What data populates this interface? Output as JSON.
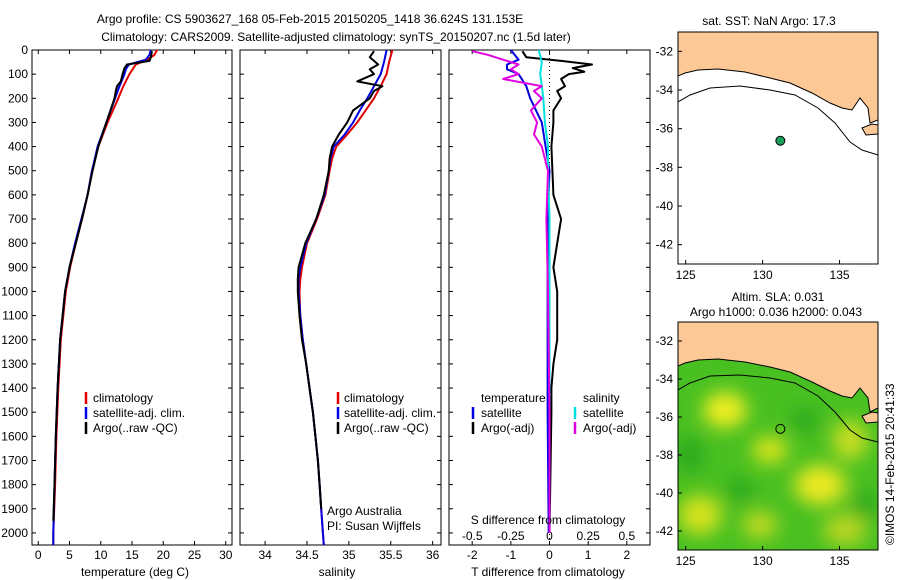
{
  "title": {
    "line1": "Argo profile: CS 5903627_168 05-Feb-2015 20150205_1418 36.624S 131.153E",
    "line2": "Climatology: CARS2009. Satellite-adjusted climatology: synTS_20150207.nc (1.5d later)"
  },
  "colors": {
    "clim": "#e00000",
    "sat": "#0000e0",
    "argo": "#000000",
    "sal_sat": "#00e0e0",
    "sal_argo": "#e000e0",
    "land": "#fcc896",
    "argo_marker": "#1aa05a"
  },
  "chart_data": [
    {
      "id": "temperature",
      "type": "line",
      "xlabel": "temperature (deg C)",
      "ylabel": "",
      "xlim": [
        -1,
        31
      ],
      "ylim": [
        2050,
        0
      ],
      "xticks": [
        0,
        5,
        10,
        15,
        20,
        25,
        30
      ],
      "yticks": [
        0,
        100,
        200,
        300,
        400,
        500,
        600,
        700,
        800,
        900,
        1000,
        1100,
        1200,
        1300,
        1400,
        1500,
        1600,
        1700,
        1800,
        1900,
        2000
      ],
      "legend": [
        "climatology",
        "satellite-adj. clim.",
        "Argo(..raw -QC)"
      ],
      "series": [
        {
          "name": "climatology",
          "color": "clim",
          "depth": [
            0,
            20,
            40,
            60,
            80,
            100,
            150,
            200,
            300,
            400,
            500,
            600,
            700,
            800,
            900,
            1000,
            1200,
            1400,
            1600,
            1800,
            2000,
            2050
          ],
          "values": [
            19.0,
            18.6,
            17.5,
            15.6,
            15.1,
            14.6,
            13.6,
            12.8,
            11.1,
            9.6,
            8.6,
            7.9,
            7.0,
            6.0,
            5.1,
            4.4,
            3.6,
            3.2,
            2.9,
            2.7,
            2.4,
            2.4
          ]
        },
        {
          "name": "satellite-adj. clim.",
          "color": "sat",
          "depth": [
            0,
            20,
            40,
            60,
            80,
            100,
            150,
            200,
            300,
            400,
            500,
            600,
            700,
            800,
            900,
            1000,
            1200,
            1400,
            1600,
            1800,
            2000,
            2050
          ],
          "values": [
            18.0,
            17.8,
            17.2,
            14.5,
            14.0,
            13.8,
            13.0,
            12.3,
            10.9,
            9.5,
            8.6,
            7.9,
            6.9,
            5.9,
            5.0,
            4.3,
            3.5,
            3.1,
            2.8,
            2.6,
            2.4,
            2.4
          ]
        },
        {
          "name": "Argo(..raw -QC)",
          "color": "argo",
          "depth": [
            5,
            30,
            45,
            60,
            75,
            100,
            130,
            150,
            170,
            200,
            300,
            400,
            500,
            600,
            700,
            800,
            900,
            1000,
            1200,
            1400,
            1600,
            1800,
            1950
          ],
          "values": [
            18.2,
            18.0,
            17.8,
            14.2,
            13.8,
            13.5,
            13.2,
            12.6,
            12.4,
            12.2,
            10.9,
            9.6,
            8.7,
            7.9,
            7.0,
            6.0,
            5.0,
            4.3,
            3.5,
            3.1,
            2.8,
            2.6,
            2.4
          ]
        }
      ]
    },
    {
      "id": "salinity",
      "type": "line",
      "xlabel": "salinity",
      "xlim": [
        33.7,
        36.1
      ],
      "ylim": [
        2050,
        0
      ],
      "xticks": [
        34,
        34.5,
        35,
        35.5,
        36
      ],
      "xticklabels": [
        "34",
        "34.5",
        "35",
        "35.5",
        "36"
      ],
      "legend": [
        "climatology",
        "satellite-adj. clim.",
        "Argo(..raw -QC)"
      ],
      "annotation": [
        "Argo Australia",
        "PI: Susan Wijffels"
      ],
      "series": [
        {
          "name": "climatology",
          "color": "clim",
          "depth": [
            0,
            50,
            100,
            150,
            200,
            250,
            300,
            350,
            400,
            450,
            500,
            600,
            700,
            800,
            900,
            950,
            1000,
            1100,
            1200,
            1300,
            1400,
            1500,
            1600,
            1700,
            1800,
            1900,
            2000,
            2050
          ],
          "values": [
            35.52,
            35.48,
            35.45,
            35.38,
            35.3,
            35.2,
            35.1,
            34.98,
            34.85,
            34.8,
            34.77,
            34.72,
            34.62,
            34.5,
            34.44,
            34.42,
            34.41,
            34.42,
            34.45,
            34.49,
            34.53,
            34.57,
            34.6,
            34.63,
            34.65,
            34.67,
            34.69,
            34.7
          ]
        },
        {
          "name": "satellite-adj. clim.",
          "color": "sat",
          "depth": [
            0,
            50,
            100,
            150,
            200,
            250,
            300,
            350,
            400,
            450,
            500,
            600,
            700,
            800,
            900,
            950,
            1000,
            1100,
            1200,
            1300,
            1400,
            1500,
            1600,
            1700,
            1800,
            1900,
            2000,
            2050
          ],
          "values": [
            35.45,
            35.42,
            35.38,
            35.3,
            35.22,
            35.13,
            35.05,
            34.95,
            34.82,
            34.78,
            34.76,
            34.71,
            34.61,
            34.49,
            34.42,
            34.4,
            34.4,
            34.42,
            34.45,
            34.49,
            34.53,
            34.57,
            34.6,
            34.63,
            34.65,
            34.67,
            34.69,
            34.7
          ]
        },
        {
          "name": "Argo(..raw -QC)",
          "color": "argo",
          "depth": [
            5,
            30,
            60,
            80,
            100,
            130,
            150,
            170,
            200,
            250,
            300,
            350,
            400,
            450,
            500,
            600,
            700,
            800,
            900,
            950,
            1000,
            1100,
            1200,
            1300,
            1400,
            1500,
            1600,
            1700,
            1800,
            1900
          ],
          "values": [
            35.3,
            35.25,
            35.35,
            35.25,
            35.3,
            35.1,
            35.4,
            35.3,
            35.25,
            35.05,
            34.98,
            34.88,
            34.8,
            34.77,
            34.76,
            34.7,
            34.61,
            34.48,
            34.4,
            34.39,
            34.39,
            34.41,
            34.44,
            34.49,
            34.53,
            34.57,
            34.6,
            34.63,
            34.65,
            34.67
          ]
        }
      ]
    },
    {
      "id": "differences",
      "type": "line",
      "xlabel": "T difference from climatology",
      "top_axis_label": "S difference from climatology",
      "xlim": [
        -2.6,
        2.6
      ],
      "ylim": [
        2050,
        0
      ],
      "xticks": [
        -2,
        -1,
        0,
        1,
        2
      ],
      "top_ticks": [
        -0.5,
        -0.25,
        0,
        0.25,
        0.5
      ],
      "top_ticklabels": [
        "-0.5",
        "-0.25",
        "0",
        "0.25",
        "0.5"
      ],
      "legend_left_title": "temperature",
      "legend_right_title": "salinity",
      "legend_left": [
        "satellite",
        "Argo(-adj)"
      ],
      "legend_right": [
        "satellite",
        "Argo(-adj)"
      ],
      "series": [
        {
          "name": "T satellite",
          "color": "sat",
          "depth": [
            0,
            40,
            60,
            80,
            100,
            150,
            200,
            300,
            400,
            500,
            700,
            1000,
            1500,
            2000
          ],
          "values": [
            -1.0,
            -0.8,
            -1.1,
            -1.1,
            -0.8,
            -0.6,
            -0.5,
            -0.2,
            -0.1,
            0,
            -0.05,
            -0.05,
            -0.05,
            -0.02
          ]
        },
        {
          "name": "T Argo(-adj)",
          "color": "argo",
          "depth": [
            5,
            30,
            45,
            60,
            75,
            90,
            100,
            120,
            150,
            170,
            200,
            250,
            300,
            400,
            600,
            700,
            800,
            900,
            1000,
            1200,
            1300,
            1400,
            1500,
            2000
          ],
          "values": [
            -0.7,
            -0.6,
            0.3,
            1.1,
            0.6,
            0.9,
            0.5,
            0.3,
            0.4,
            0.2,
            0.3,
            0.1,
            0.1,
            0.05,
            0.1,
            0.3,
            0.2,
            0.1,
            0.2,
            0.2,
            0.1,
            0.05,
            0.05,
            0.0
          ]
        },
        {
          "name": "S satellite",
          "color": "sal_sat",
          "depth": [
            0,
            50,
            100,
            150,
            200,
            300,
            400,
            500,
            700,
            1000,
            1500,
            2000
          ],
          "values": [
            -0.07,
            -0.05,
            -0.06,
            -0.05,
            -0.04,
            -0.03,
            -0.01,
            -0.01,
            0,
            0,
            0,
            0
          ]
        },
        {
          "name": "S Argo(-adj)",
          "color": "sal_argo",
          "depth": [
            5,
            20,
            40,
            60,
            80,
            100,
            120,
            150,
            170,
            200,
            250,
            300,
            350,
            400,
            500,
            700,
            1000,
            1500,
            2000
          ],
          "values": [
            -0.5,
            -0.4,
            -0.3,
            -0.2,
            -0.25,
            -0.2,
            -0.3,
            -0.05,
            -0.1,
            -0.05,
            -0.12,
            -0.08,
            -0.1,
            -0.05,
            -0.01,
            -0.02,
            -0.01,
            0,
            0
          ]
        }
      ]
    },
    {
      "id": "map_sst",
      "type": "map",
      "title": "sat. SST: NaN Argo: 17.3",
      "xlim": [
        124.5,
        137.5
      ],
      "ylim": [
        -43,
        -31
      ],
      "xticks": [
        125,
        130,
        135
      ],
      "yticks": [
        -32,
        -34,
        -36,
        -38,
        -40,
        -42
      ],
      "argo_position": {
        "lon": 131.153,
        "lat": -36.624
      }
    },
    {
      "id": "map_sla",
      "type": "map",
      "title_line1": "Altim. SLA: 0.031",
      "title_line2": "Argo h1000: 0.036 h2000: 0.043",
      "xlim": [
        124.5,
        137.5
      ],
      "ylim": [
        -43,
        -31
      ],
      "xticks": [
        125,
        130,
        135
      ],
      "yticks": [
        -32,
        -34,
        -36,
        -38,
        -40,
        -42
      ],
      "argo_position": {
        "lon": 131.153,
        "lat": -36.624
      }
    }
  ],
  "credit": "©IMOS 14-Feb-2015 20:41:33"
}
